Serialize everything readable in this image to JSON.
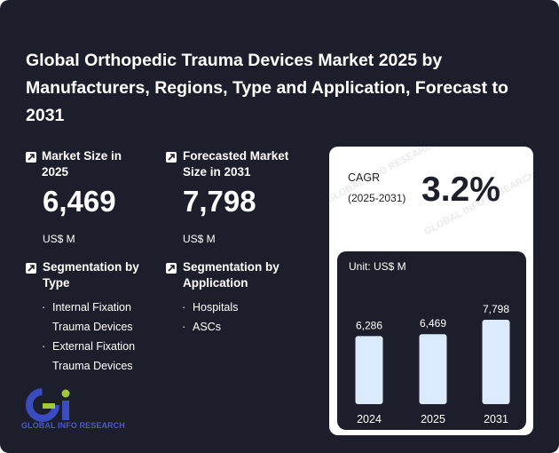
{
  "title": "Global Orthopedic Trauma Devices Market 2025 by Manufacturers, Regions, Type and Application, Forecast to 2031",
  "market_size": {
    "label": "Market Size in 2025",
    "value": "6,469",
    "unit": "US$ M"
  },
  "forecast": {
    "label": "Forecasted Market Size in 2031",
    "value": "7,798",
    "unit": "US$ M"
  },
  "segmentation_type": {
    "label": "Segmentation by Type",
    "items": [
      "Internal Fixation Trauma Devices",
      "External Fixation Trauma Devices"
    ]
  },
  "segmentation_application": {
    "label": "Segmentation by Application",
    "items": [
      "Hospitals",
      "ASCs"
    ]
  },
  "cagr": {
    "label": "CAGR",
    "range": "(2025-2031)",
    "value": "3.2%"
  },
  "logo": {
    "text": "GLOBAL INFO RESEARCH",
    "mark": "Gi"
  },
  "watermark": "GLOBAL INFO RESEARCH",
  "colors": {
    "background": "#1d1e2c",
    "bar": "#dbeafe",
    "accent_green": "#a3c93a",
    "accent_blue": "#3b4cc0"
  },
  "chart_data": {
    "type": "bar",
    "unit_label": "Unit: US$ M",
    "categories": [
      "2024",
      "2025",
      "2031"
    ],
    "values": [
      6286,
      6469,
      7798
    ],
    "value_labels": [
      "6,286",
      "6,469",
      "7,798"
    ]
  }
}
